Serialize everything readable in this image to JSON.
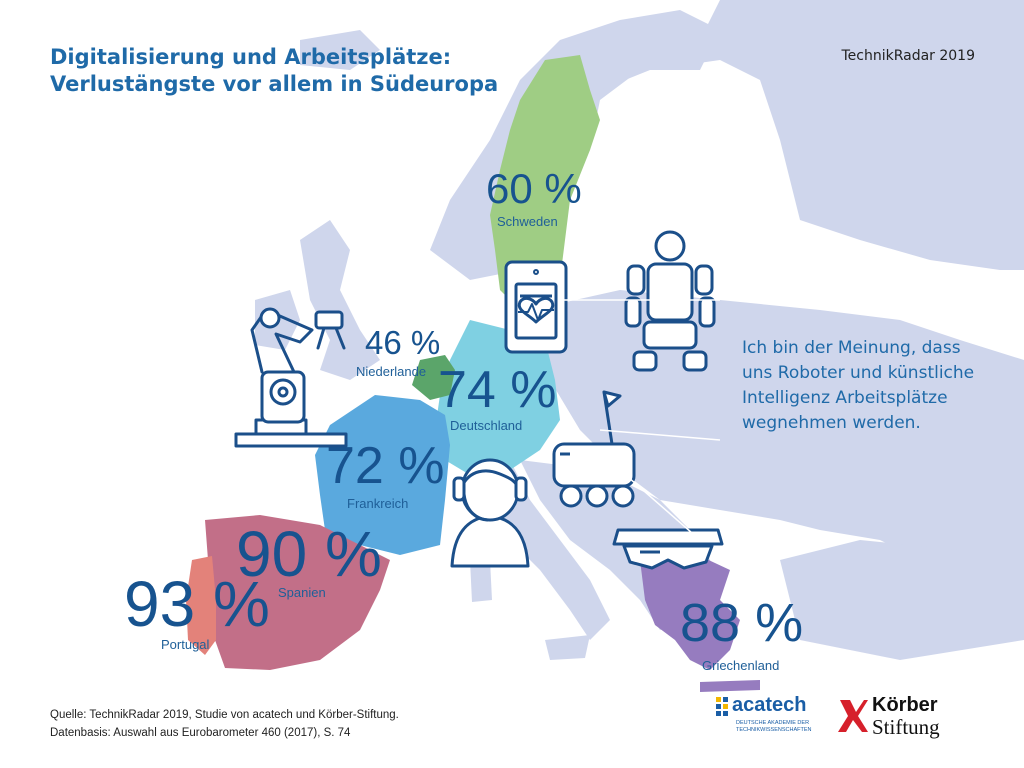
{
  "header": {
    "title_line1": "Digitalisierung und Arbeitsplätze:",
    "title_line2": "Verlustängste vor allem in Südeuropa",
    "brand": "TechnikRadar 2019"
  },
  "statement": {
    "line1": "Ich bin der Meinung, dass",
    "line2": "uns Roboter und künstliche",
    "line3": "Intelligenz Arbeitsplätze",
    "line4": "wegnehmen werden."
  },
  "countries": {
    "schweden": {
      "value": "60 %",
      "name": "Schweden"
    },
    "niederlande": {
      "value": "46 %",
      "name": "Niederlande"
    },
    "deutschland": {
      "value": "74 %",
      "name": "Deutschland"
    },
    "frankreich": {
      "value": "72 %",
      "name": "Frankreich"
    },
    "spanien": {
      "value": "90 %",
      "name": "Spanien"
    },
    "portugal": {
      "value": "93 %",
      "name": "Portugal"
    },
    "griechenland": {
      "value": "88 %",
      "name": "Griechenland"
    }
  },
  "colors": {
    "europe_base": "#cfd6ec",
    "schweden": "#9fcd84",
    "niederlande": "#5ba56a",
    "deutschland": "#7fd0e2",
    "frankreich": "#5aa9de",
    "spanien": "#c26f88",
    "portugal": "#e3827a",
    "griechenland": "#967cbf",
    "text_primary": "#1f6aa8",
    "icon_stroke": "#1b4f8a"
  },
  "icons": [
    "robot-arm-icon",
    "tablet-heart-icon",
    "humanoid-robot-icon",
    "delivery-robot-icon",
    "headset-person-icon",
    "vr-glasses-icon"
  ],
  "footer": {
    "source": "Quelle: TechnikRadar 2019, Studie von acatech und Körber-Stiftung.",
    "database": "Datenbasis: Auswahl aus Eurobarometer 460 (2017), S. 74"
  },
  "logos": {
    "acatech_name": "acatech",
    "acatech_sub1": "DEUTSCHE AKADEMIE DER",
    "acatech_sub2": "TECHNIKWISSENSCHAFTEN",
    "koerber_name": "Körber",
    "koerber_sub": "Stiftung"
  }
}
